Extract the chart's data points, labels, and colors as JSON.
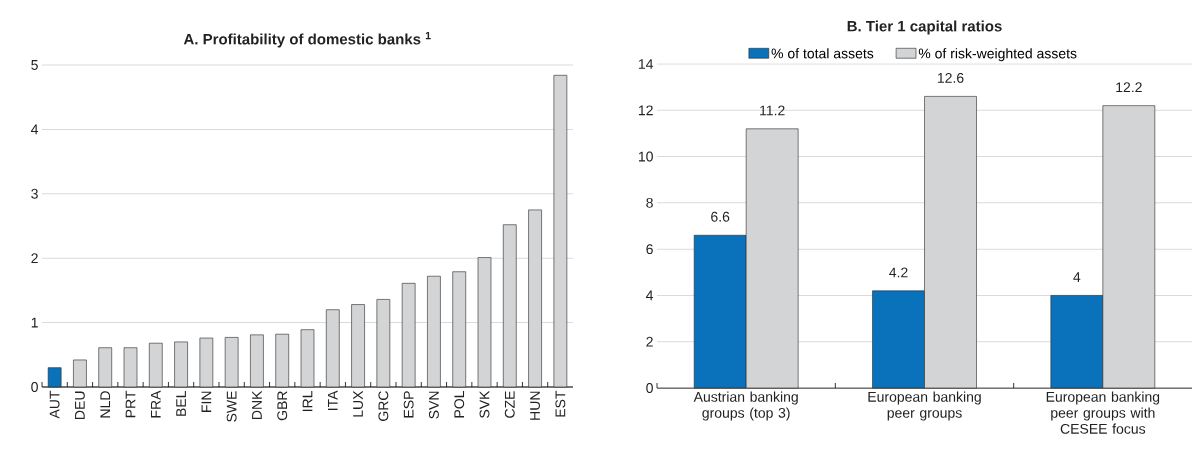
{
  "chart_data": [
    {
      "type": "bar",
      "title": "A. Profitability of domestic banks $^{1}$",
      "categories": [
        "AUT",
        "DEU",
        "NLD",
        "PRT",
        "FRA",
        "BEL",
        "FIN",
        "SWE",
        "DNK",
        "GBR",
        "IRL",
        "ITA",
        "LUX",
        "GRC",
        "ESP",
        "SVN",
        "POL",
        "SVK",
        "CZE",
        "HUN",
        "EST"
      ],
      "values": [
        0.3,
        0.42,
        0.61,
        0.61,
        0.68,
        0.7,
        0.76,
        0.77,
        0.81,
        0.82,
        0.89,
        1.2,
        1.28,
        1.36,
        1.61,
        1.72,
        1.79,
        2.01,
        2.52,
        2.75,
        4.84
      ],
      "colors": [
        "#0a72ba",
        "#d3d4d6",
        "#d3d4d6",
        "#d3d4d6",
        "#d3d4d6",
        "#d3d4d6",
        "#d3d4d6",
        "#d3d4d6",
        "#d3d4d6",
        "#d3d4d6",
        "#d3d4d6",
        "#d3d4d6",
        "#d3d4d6",
        "#d3d4d6",
        "#d3d4d6",
        "#d3d4d6",
        "#d3d4d6",
        "#d3d4d6",
        "#d3d4d6",
        "#d3d4d6",
        "#d3d4d6"
      ],
      "ylim": [
        0,
        5
      ],
      "yticks": [
        0,
        1,
        2,
        3,
        4,
        5
      ],
      "grid": "y"
    },
    {
      "type": "bar",
      "title": "B. Tier 1 capital ratios",
      "categories": [
        "Austrian banking groups (top 3)",
        "European banking peer groups",
        "European banking peer groups with CESEE focus"
      ],
      "series": [
        {
          "name": "% of total assets",
          "color": "#0a72ba",
          "values": [
            6.6,
            4.2,
            4
          ],
          "value_labels": [
            "6.6",
            "4.2",
            "4"
          ]
        },
        {
          "name": "% of risk-weighted assets",
          "color": "#d3d4d6",
          "values": [
            11.2,
            12.6,
            12.2
          ],
          "value_labels": [
            "11.2",
            "12.6",
            "12.2"
          ]
        }
      ],
      "ylim": [
        0,
        14
      ],
      "yticks": [
        0,
        2,
        4,
        6,
        8,
        10,
        12,
        14
      ],
      "grid": "y",
      "legend": "top"
    }
  ]
}
